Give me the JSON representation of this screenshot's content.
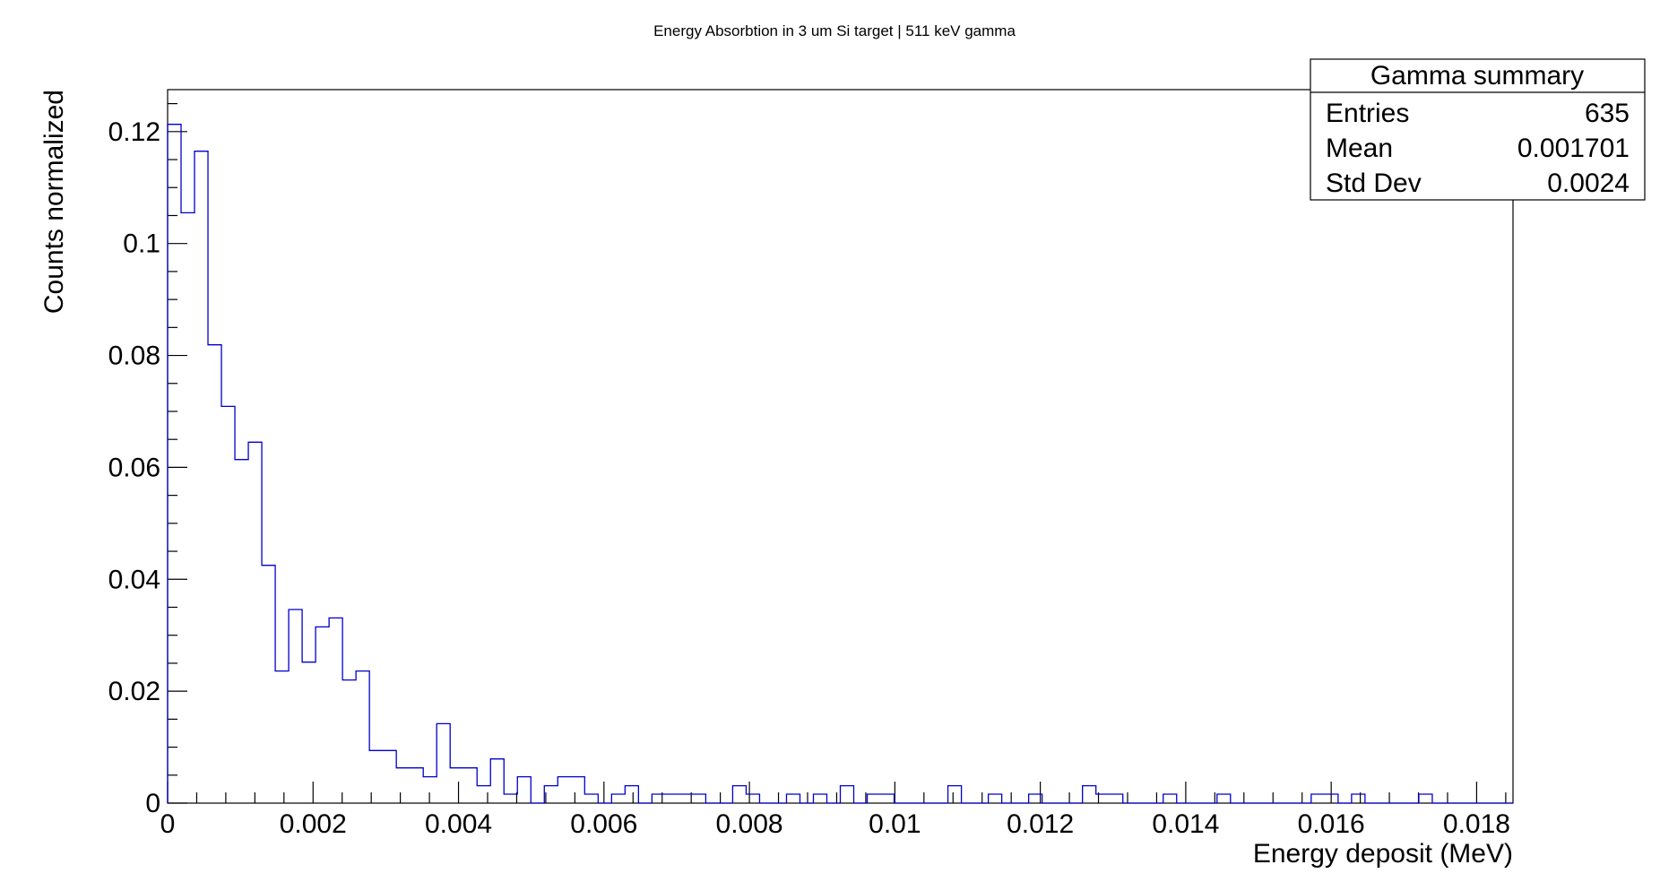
{
  "chart_data": {
    "type": "bar",
    "title": "Energy Absorbtion in 3 um Si target | 511 keV gamma",
    "xlabel": "Energy deposit (MeV)",
    "ylabel": "Counts normalized",
    "xlim": [
      0,
      0.0185
    ],
    "ylim": [
      0,
      0.1275
    ],
    "x_ticks": [
      0,
      0.002,
      0.004,
      0.006,
      0.008,
      0.01,
      0.012,
      0.014,
      0.016,
      0.018
    ],
    "x_tick_labels": [
      "0",
      "0.002",
      "0.004",
      "0.006",
      "0.008",
      "0.01",
      "0.012",
      "0.014",
      "0.016",
      "0.018"
    ],
    "y_ticks": [
      0,
      0.02,
      0.04,
      0.06,
      0.08,
      0.1,
      0.12
    ],
    "y_tick_labels": [
      "0",
      "0.02",
      "0.04",
      "0.06",
      "0.08",
      "0.1",
      "0.12"
    ],
    "bin_width": 0.000185,
    "series": [
      {
        "color": "#0000cc",
        "bin_centers": [
          9.25e-05,
          0.0002775,
          0.0004625,
          0.0006475,
          0.0008325,
          0.0010175,
          0.0012025,
          0.0013875,
          0.0015725,
          0.0017575,
          0.0019425,
          0.0021275,
          0.0023125,
          0.0024975,
          0.0026825,
          0.0028675,
          0.0030525,
          0.0032375,
          0.0034225,
          0.0036075,
          0.0037925,
          0.0039775,
          0.0041625,
          0.0043475,
          0.0045325,
          0.0047175,
          0.0049025,
          0.0050875,
          0.0052725,
          0.0054575,
          0.0056425,
          0.0058275,
          0.0060125,
          0.0061975,
          0.0063825,
          0.0065675,
          0.0067525,
          0.0069375,
          0.0071225,
          0.0073075,
          0.0074925,
          0.0076775,
          0.0078625,
          0.0080475,
          0.0082325,
          0.0084175,
          0.0086025,
          0.0087875,
          0.0089725,
          0.0091575,
          0.0093425,
          0.0095275,
          0.0097125,
          0.0098975,
          0.0100825,
          0.0102675,
          0.0104525,
          0.0106375,
          0.0108225,
          0.0110075,
          0.0111925,
          0.0113775,
          0.0115625,
          0.0117475,
          0.0119325,
          0.0121175,
          0.0123025,
          0.0124875,
          0.0126725,
          0.0128575,
          0.0130425,
          0.0132275,
          0.0134125,
          0.0135975,
          0.0137825,
          0.0139675,
          0.0141525,
          0.0143375,
          0.0145225,
          0.0147075,
          0.0148925,
          0.0150775,
          0.0152625,
          0.0154475,
          0.0156325,
          0.0158175,
          0.0160025,
          0.0161875,
          0.0163725,
          0.0165575,
          0.0167425,
          0.0169275,
          0.0171125,
          0.0172975,
          0.0174825,
          0.0176675,
          0.0178525,
          0.0180375,
          0.0182225,
          0.0184075
        ],
        "values": [
          0.1213,
          0.1055,
          0.1165,
          0.0819,
          0.0709,
          0.0614,
          0.0645,
          0.0425,
          0.0236,
          0.0346,
          0.0252,
          0.0315,
          0.0331,
          0.022,
          0.0236,
          0.0094,
          0.0094,
          0.0063,
          0.0063,
          0.0047,
          0.0142,
          0.0063,
          0.0063,
          0.0031,
          0.0079,
          0.0016,
          0.0047,
          0,
          0.0031,
          0.0047,
          0.0047,
          0.0016,
          0,
          0.0016,
          0.0031,
          0,
          0.0016,
          0.0016,
          0.0016,
          0.0016,
          0,
          0,
          0.0031,
          0.0016,
          0,
          0,
          0.0016,
          0,
          0.0016,
          0,
          0.0031,
          0,
          0.0016,
          0.0016,
          0,
          0,
          0,
          0,
          0.0031,
          0,
          0,
          0.0016,
          0,
          0,
          0.0016,
          0,
          0,
          0,
          0.0031,
          0.0016,
          0.0016,
          0,
          0,
          0,
          0.0016,
          0,
          0,
          0,
          0.0016,
          0,
          0,
          0,
          0,
          0,
          0,
          0.0016,
          0.0016,
          0,
          0.0016,
          0,
          0,
          0,
          0,
          0.0016,
          0,
          0,
          0,
          0,
          0,
          0
        ]
      }
    ],
    "legend": {
      "title": "Gamma summary",
      "rows": [
        {
          "label": "Entries",
          "value": "635"
        },
        {
          "label": "Mean",
          "value": "0.001701"
        },
        {
          "label": "Std Dev",
          "value": "0.0024"
        }
      ]
    },
    "grid": false,
    "legend_position": "top-right"
  }
}
